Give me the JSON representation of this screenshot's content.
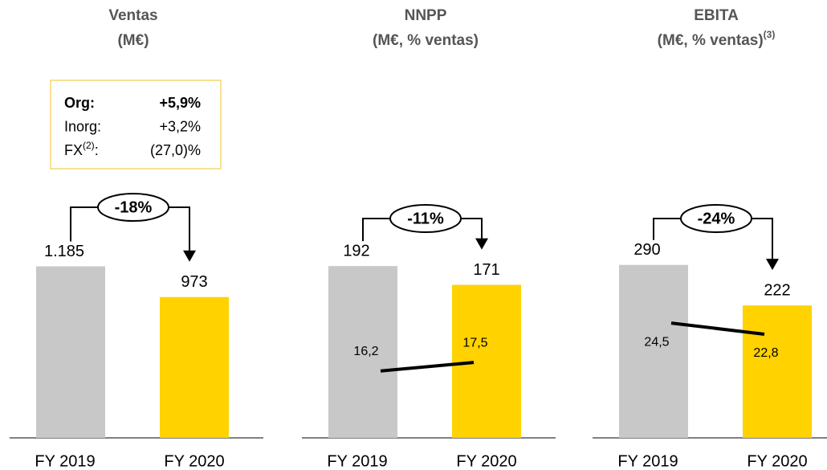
{
  "chart_data": [
    {
      "type": "bar",
      "title": "Ventas",
      "subtitle": "(M€)",
      "categories": [
        "FY 2019",
        "FY 2020"
      ],
      "values": [
        1185,
        973
      ],
      "value_labels": [
        "1.185",
        "973"
      ],
      "colors": [
        "#c8c8c8",
        "#ffd200"
      ],
      "ylim": [
        0,
        1360
      ],
      "change": "-18%",
      "breakdown": [
        {
          "label": "Org:",
          "value": "+5,9%",
          "bold": true
        },
        {
          "label": "Inorg:",
          "value": "+3,2%"
        },
        {
          "label": "FX",
          "label_sup": "(2)",
          "label_end": ":",
          "value": "(27,0)%"
        }
      ]
    },
    {
      "type": "bar",
      "title": "NNPP",
      "subtitle": "(M€, % ventas)",
      "categories": [
        "FY 2019",
        "FY 2020"
      ],
      "values": [
        192,
        171
      ],
      "value_labels": [
        "192",
        "171"
      ],
      "colors": [
        "#c8c8c8",
        "#ffd200"
      ],
      "ylim": [
        0,
        220
      ],
      "change": "-11%",
      "line": {
        "values": [
          16.2,
          17.5
        ],
        "value_labels": [
          "16,2",
          "17,5"
        ],
        "color": "#000000",
        "axis": "y2"
      },
      "y2lim": [
        6,
        36
      ]
    },
    {
      "type": "bar",
      "title": "EBITA",
      "subtitle": "(M€, % ventas)",
      "subtitle_sup": "(3)",
      "categories": [
        "FY 2019",
        "FY 2020"
      ],
      "values": [
        290,
        222
      ],
      "value_labels": [
        "290",
        "222"
      ],
      "colors": [
        "#c8c8c8",
        "#ffd200"
      ],
      "ylim": [
        0,
        330
      ],
      "change": "-24%",
      "line": {
        "values": [
          24.5,
          22.8
        ],
        "value_labels": [
          "24,5",
          "22,8"
        ],
        "color": "#000000",
        "axis": "y2"
      },
      "y2lim": [
        7,
        37
      ]
    }
  ]
}
